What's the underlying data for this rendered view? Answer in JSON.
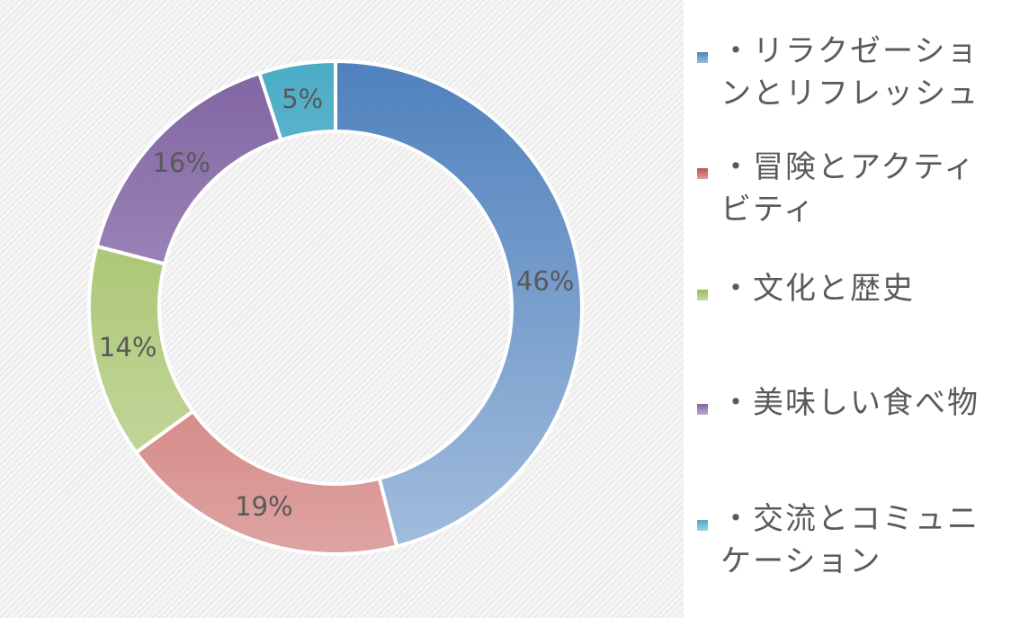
{
  "chart_data": {
    "type": "pie",
    "title": "",
    "donut": true,
    "labels": [
      "・リラクゼーションとリフレッシュ",
      "・冒険とアクティビティ",
      "・文化と歴史",
      "・美味しい食べ物",
      "・交流とコミュニケーション"
    ],
    "values": [
      46,
      19,
      14,
      16,
      5
    ],
    "data_labels": [
      "46%",
      "19%",
      "14%",
      "16%",
      "5%"
    ],
    "colors": [
      "#4f81bd",
      "#c0504d",
      "#9bbb59",
      "#8064a2",
      "#4bacc6"
    ],
    "legend_position": "right"
  }
}
